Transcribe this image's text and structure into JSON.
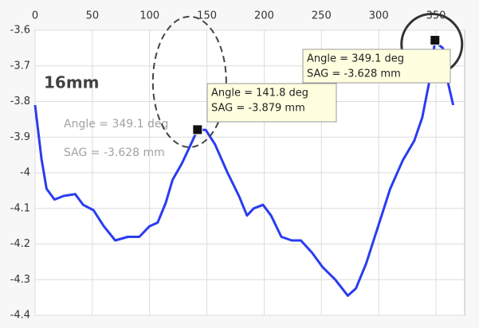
{
  "chart_data": {
    "type": "line",
    "xlim": [
      0,
      375
    ],
    "xticks": [
      0,
      50,
      100,
      150,
      200,
      250,
      300,
      350
    ],
    "ylim": [
      -4.4,
      -3.6
    ],
    "yticks": [
      -3.6,
      -3.7,
      -3.8,
      -3.9,
      -4,
      -4.1,
      -4.2,
      -4.3,
      -4.4
    ],
    "grid": true,
    "x": [
      0,
      5.6,
      10,
      17,
      25,
      35,
      42,
      51,
      60,
      70,
      81,
      91,
      100,
      107,
      114,
      120,
      128,
      136,
      141.8,
      149,
      157,
      168,
      178,
      185,
      191,
      199,
      206,
      215,
      224,
      232,
      242,
      251,
      262,
      273,
      280,
      289,
      300,
      310,
      321,
      331,
      338,
      345,
      349.1,
      352,
      356,
      360,
      365
    ],
    "series": [
      {
        "color": "#2a3cf0",
        "values": [
          -3.81,
          -3.96,
          -4.045,
          -4.075,
          -4.065,
          -4.06,
          -4.09,
          -4.105,
          -4.15,
          -4.19,
          -4.18,
          -4.18,
          -4.15,
          -4.14,
          -4.085,
          -4.02,
          -3.975,
          -3.92,
          -3.879,
          -3.88,
          -3.92,
          -4.0,
          -4.065,
          -4.12,
          -4.1,
          -4.09,
          -4.12,
          -4.18,
          -4.19,
          -4.19,
          -4.225,
          -4.265,
          -4.3,
          -4.345,
          -4.325,
          -4.255,
          -4.145,
          -4.045,
          -3.965,
          -3.91,
          -3.845,
          -3.73,
          -3.628,
          -3.64,
          -3.65,
          -3.74,
          -3.81
        ]
      }
    ],
    "datatips": [
      {
        "x": 141.8,
        "y": -3.879,
        "lines": [
          "Angle = 141.8 deg",
          "SAG = -3.879 mm"
        ]
      },
      {
        "x": 349.1,
        "y": -3.628,
        "lines": [
          "Angle = 349.1 deg",
          "SAG = -3.628 mm"
        ]
      }
    ],
    "annotations": [
      "16mm",
      "Angle = 349.1 deg",
      "SAG = -3.628 mm"
    ]
  }
}
